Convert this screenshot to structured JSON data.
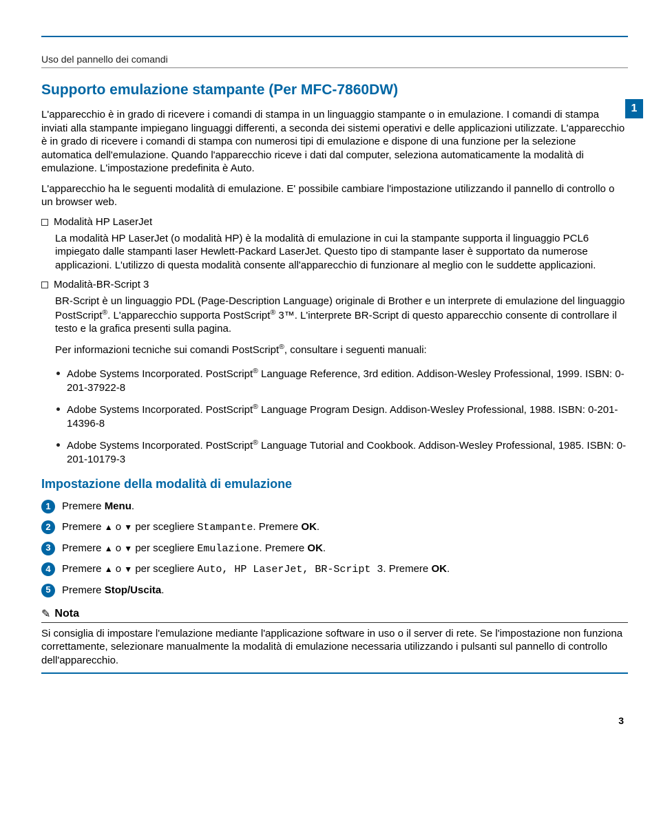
{
  "colors": {
    "brand": "#0066a4",
    "text": "#000000"
  },
  "chapter_badge": "1",
  "section_header": "Uso del pannello dei comandi",
  "title": "Supporto emulazione stampante (Per MFC-7860DW)",
  "para1": "L'apparecchio è in grado di ricevere i comandi di stampa in un linguaggio stampante o in emulazione. I comandi di stampa inviati alla stampante impiegano linguaggi differenti, a seconda dei sistemi operativi e delle applicazioni utilizzate. L'apparecchio è in grado di ricevere i comandi di stampa con numerosi tipi di emulazione e dispone di una funzione per la selezione automatica dell'emulazione. Quando l'apparecchio riceve i dati dal computer, seleziona automaticamente la modalità di emulazione. L'impostazione predefinita è Auto.",
  "para2": "L'apparecchio ha le seguenti modalità di emulazione. E' possibile cambiare l'impostazione utilizzando il pannello di controllo o un browser web.",
  "mode1": {
    "label": "Modalità HP LaserJet",
    "body": "La modalità HP LaserJet (o modalità HP) è la modalità di emulazione in cui la stampante supporta il linguaggio PCL6 impiegato dalle stampanti laser Hewlett-Packard LaserJet. Questo tipo di stampante laser è supportato da numerose applicazioni. L'utilizzo di questa modalità consente all'apparecchio di funzionare al meglio con le suddette applicazioni."
  },
  "mode2": {
    "label": "Modalità-BR-Script 3",
    "body1_a": "BR-Script è un linguaggio PDL (Page-Description Language) originale di Brother e un interprete di emulazione del linguaggio PostScript",
    "body1_b": ". L'apparecchio supporta PostScript",
    "body1_c": " 3™. L'interprete BR-Script di questo apparecchio consente di controllare il testo e la grafica presenti sulla pagina.",
    "body2_a": "Per informazioni tecniche sui comandi PostScript",
    "body2_b": ", consultare i seguenti manuali:",
    "refs": [
      {
        "a": "Adobe Systems Incorporated. PostScript",
        "b": " Language Reference, 3rd edition. Addison-Wesley Professional, 1999. ISBN: 0-201-37922-8"
      },
      {
        "a": "Adobe Systems Incorporated. PostScript",
        "b": " Language Program Design. Addison-Wesley Professional, 1988. ISBN: 0-201-14396-8"
      },
      {
        "a": "Adobe Systems Incorporated. PostScript",
        "b": " Language Tutorial and Cookbook. Addison-Wesley Professional, 1985. ISBN: 0-201-10179-3"
      }
    ]
  },
  "subheading": "Impostazione della modalità di emulazione",
  "steps": {
    "s1_a": "Premere ",
    "s1_bold": "Menu",
    "s1_b": ".",
    "s2_a": "Premere ",
    "s2_b": " o ",
    "s2_c": " per scegliere ",
    "s2_mono": "Stampante",
    "s2_d": ". Premere ",
    "s2_bold": "OK",
    "s2_e": ".",
    "s3_a": "Premere ",
    "s3_b": " o ",
    "s3_c": " per scegliere ",
    "s3_mono": "Emulazione",
    "s3_d": ". Premere ",
    "s3_bold": "OK",
    "s3_e": ".",
    "s4_a": "Premere ",
    "s4_b": " o ",
    "s4_c": " per scegliere ",
    "s4_mono": "Auto, HP LaserJet, BR-Script 3",
    "s4_d": ". Premere ",
    "s4_bold": "OK",
    "s4_e": ".",
    "s5_a": "Premere ",
    "s5_bold": "Stop/Uscita",
    "s5_b": "."
  },
  "tri_up": "▲",
  "tri_down": "▼",
  "note": {
    "title": "Nota",
    "body": "Si consiglia di impostare l'emulazione mediante l'applicazione software in uso o il server di rete. Se l'impostazione non funziona correttamente, selezionare manualmente la modalità di emulazione necessaria utilizzando i pulsanti sul pannello di controllo dell'apparecchio."
  },
  "page_number": "3"
}
